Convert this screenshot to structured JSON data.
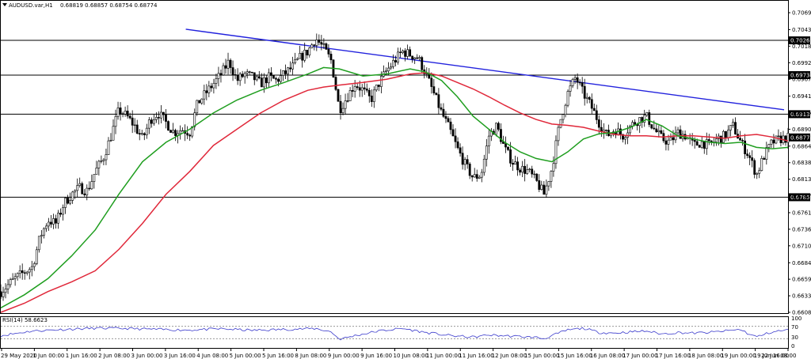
{
  "header": {
    "symbol": "AUDUSD.var,H1",
    "ohlc": "0.68819 0.68857 0.68754 0.68774"
  },
  "rsi_panel": {
    "label": "RSI(14) 58.6623",
    "levels": [
      "100",
      "70",
      "30",
      "0"
    ]
  },
  "chart_data": {
    "type": "candlestick",
    "instrument": "AUDUSD.var",
    "timeframe": "H1",
    "ylim": [
      0.6608,
      0.7072
    ],
    "y_ticks": [
      "0.70695",
      "0.70435",
      "0.70180",
      "0.69925",
      "0.69670",
      "0.69410",
      "0.69155",
      "0.68900",
      "0.68640",
      "0.68385",
      "0.68130",
      "0.67870",
      "0.67615",
      "0.67360",
      "0.67105",
      "0.66844",
      "0.66590",
      "0.66335",
      "0.66080"
    ],
    "x_ticks": [
      "29 May 2020",
      "1 Jun 00:00",
      "1 Jun 16:00",
      "2 Jun 08:00",
      "3 Jun 00:00",
      "3 Jun 16:00",
      "4 Jun 08:00",
      "5 Jun 00:00",
      "5 Jun 16:00",
      "8 Jun 08:00",
      "9 Jun 00:00",
      "9 Jun 16:00",
      "10 Jun 08:00",
      "11 Jun 00:00",
      "11 Jun 16:00",
      "12 Jun 08:00",
      "15 Jun 00:00",
      "15 Jun 16:00",
      "16 Jun 08:00",
      "17 Jun 00:00",
      "17 Jun 16:00",
      "18 Jun 08:00",
      "19 Jun 00:00",
      "19 Jun 16:00",
      "22 Jun 08:00"
    ],
    "horizontal_levels": [
      {
        "value": 0.70269,
        "label": "0.70269"
      },
      {
        "value": 0.69734,
        "label": "0.69734"
      },
      {
        "value": 0.69132,
        "label": "0.69132"
      },
      {
        "value": 0.67853,
        "label": "0.67853"
      }
    ],
    "current_price": {
      "value": 0.68774,
      "label": "0.68774"
    },
    "trendline": {
      "from": [
        0.235,
        0.7044
      ],
      "to": [
        0.995,
        0.692
      ]
    },
    "close_path": [
      [
        0.0,
        0.664
      ],
      [
        0.02,
        0.6662
      ],
      [
        0.04,
        0.6678
      ],
      [
        0.05,
        0.6725
      ],
      [
        0.06,
        0.675
      ],
      [
        0.07,
        0.6745
      ],
      [
        0.08,
        0.6775
      ],
      [
        0.09,
        0.679
      ],
      [
        0.1,
        0.68
      ],
      [
        0.11,
        0.6795
      ],
      [
        0.12,
        0.6825
      ],
      [
        0.13,
        0.6845
      ],
      [
        0.14,
        0.688
      ],
      [
        0.15,
        0.692
      ],
      [
        0.16,
        0.691
      ],
      [
        0.17,
        0.6895
      ],
      [
        0.18,
        0.6875
      ],
      [
        0.19,
        0.6905
      ],
      [
        0.2,
        0.6915
      ],
      [
        0.21,
        0.69
      ],
      [
        0.22,
        0.6885
      ],
      [
        0.23,
        0.689
      ],
      [
        0.24,
        0.6885
      ],
      [
        0.25,
        0.693
      ],
      [
        0.26,
        0.6945
      ],
      [
        0.27,
        0.696
      ],
      [
        0.28,
        0.6975
      ],
      [
        0.29,
        0.6995
      ],
      [
        0.3,
        0.6965
      ],
      [
        0.31,
        0.6975
      ],
      [
        0.32,
        0.697
      ],
      [
        0.33,
        0.696
      ],
      [
        0.34,
        0.697
      ],
      [
        0.35,
        0.6965
      ],
      [
        0.36,
        0.6975
      ],
      [
        0.37,
        0.6985
      ],
      [
        0.38,
        0.7
      ],
      [
        0.39,
        0.701
      ],
      [
        0.4,
        0.703
      ],
      [
        0.41,
        0.7015
      ],
      [
        0.42,
        0.6995
      ],
      [
        0.43,
        0.692
      ],
      [
        0.44,
        0.694
      ],
      [
        0.45,
        0.696
      ],
      [
        0.46,
        0.695
      ],
      [
        0.47,
        0.6935
      ],
      [
        0.48,
        0.696
      ],
      [
        0.49,
        0.698
      ],
      [
        0.5,
        0.6995
      ],
      [
        0.51,
        0.701
      ],
      [
        0.52,
        0.7005
      ],
      [
        0.53,
        0.7
      ],
      [
        0.54,
        0.6975
      ],
      [
        0.55,
        0.6945
      ],
      [
        0.56,
        0.6915
      ],
      [
        0.57,
        0.689
      ],
      [
        0.58,
        0.686
      ],
      [
        0.59,
        0.6835
      ],
      [
        0.6,
        0.6815
      ],
      [
        0.61,
        0.682
      ],
      [
        0.62,
        0.688
      ],
      [
        0.63,
        0.6895
      ],
      [
        0.64,
        0.686
      ],
      [
        0.65,
        0.684
      ],
      [
        0.66,
        0.683
      ],
      [
        0.67,
        0.6825
      ],
      [
        0.68,
        0.681
      ],
      [
        0.69,
        0.679
      ],
      [
        0.7,
        0.683
      ],
      [
        0.71,
        0.69
      ],
      [
        0.72,
        0.6945
      ],
      [
        0.73,
        0.697
      ],
      [
        0.74,
        0.6945
      ],
      [
        0.75,
        0.6925
      ],
      [
        0.76,
        0.69
      ],
      [
        0.77,
        0.688
      ],
      [
        0.78,
        0.689
      ],
      [
        0.79,
        0.688
      ],
      [
        0.8,
        0.6895
      ],
      [
        0.81,
        0.6905
      ],
      [
        0.82,
        0.691
      ],
      [
        0.83,
        0.689
      ],
      [
        0.84,
        0.6875
      ],
      [
        0.85,
        0.687
      ],
      [
        0.86,
        0.6885
      ],
      [
        0.87,
        0.688
      ],
      [
        0.88,
        0.6865
      ],
      [
        0.89,
        0.687
      ],
      [
        0.9,
        0.6865
      ],
      [
        0.91,
        0.6875
      ],
      [
        0.92,
        0.688
      ],
      [
        0.93,
        0.6895
      ],
      [
        0.94,
        0.687
      ],
      [
        0.95,
        0.685
      ],
      [
        0.96,
        0.682
      ],
      [
        0.97,
        0.685
      ],
      [
        0.98,
        0.687
      ],
      [
        0.99,
        0.6875
      ],
      [
        1.0,
        0.6877
      ]
    ],
    "ma_green_path": [
      [
        0.0,
        0.6615
      ],
      [
        0.03,
        0.6635
      ],
      [
        0.06,
        0.666
      ],
      [
        0.09,
        0.6695
      ],
      [
        0.12,
        0.6735
      ],
      [
        0.15,
        0.679
      ],
      [
        0.18,
        0.684
      ],
      [
        0.21,
        0.687
      ],
      [
        0.24,
        0.689
      ],
      [
        0.27,
        0.6915
      ],
      [
        0.3,
        0.6935
      ],
      [
        0.33,
        0.695
      ],
      [
        0.36,
        0.6962
      ],
      [
        0.39,
        0.6975
      ],
      [
        0.41,
        0.6985
      ],
      [
        0.43,
        0.6983
      ],
      [
        0.46,
        0.6972
      ],
      [
        0.49,
        0.6975
      ],
      [
        0.52,
        0.6983
      ],
      [
        0.54,
        0.6978
      ],
      [
        0.56,
        0.6965
      ],
      [
        0.58,
        0.694
      ],
      [
        0.6,
        0.691
      ],
      [
        0.62,
        0.689
      ],
      [
        0.64,
        0.687
      ],
      [
        0.66,
        0.6855
      ],
      [
        0.68,
        0.6845
      ],
      [
        0.7,
        0.684
      ],
      [
        0.72,
        0.6855
      ],
      [
        0.74,
        0.6875
      ],
      [
        0.76,
        0.6883
      ],
      [
        0.78,
        0.6885
      ],
      [
        0.8,
        0.6893
      ],
      [
        0.82,
        0.6905
      ],
      [
        0.84,
        0.6895
      ],
      [
        0.86,
        0.688
      ],
      [
        0.88,
        0.6875
      ],
      [
        0.9,
        0.687
      ],
      [
        0.92,
        0.6868
      ],
      [
        0.94,
        0.687
      ],
      [
        0.96,
        0.6862
      ],
      [
        0.98,
        0.686
      ],
      [
        1.0,
        0.6862
      ]
    ],
    "ma_red_path": [
      [
        0.0,
        0.6608
      ],
      [
        0.03,
        0.6622
      ],
      [
        0.06,
        0.664
      ],
      [
        0.09,
        0.6655
      ],
      [
        0.12,
        0.6672
      ],
      [
        0.15,
        0.6705
      ],
      [
        0.18,
        0.6745
      ],
      [
        0.21,
        0.679
      ],
      [
        0.24,
        0.6825
      ],
      [
        0.27,
        0.6865
      ],
      [
        0.3,
        0.689
      ],
      [
        0.33,
        0.6915
      ],
      [
        0.36,
        0.6935
      ],
      [
        0.39,
        0.695
      ],
      [
        0.41,
        0.6955
      ],
      [
        0.43,
        0.6958
      ],
      [
        0.46,
        0.6962
      ],
      [
        0.49,
        0.6967
      ],
      [
        0.52,
        0.6975
      ],
      [
        0.54,
        0.6977
      ],
      [
        0.56,
        0.6972
      ],
      [
        0.58,
        0.6962
      ],
      [
        0.6,
        0.6952
      ],
      [
        0.62,
        0.694
      ],
      [
        0.64,
        0.6927
      ],
      [
        0.66,
        0.6915
      ],
      [
        0.68,
        0.6905
      ],
      [
        0.7,
        0.6898
      ],
      [
        0.72,
        0.6896
      ],
      [
        0.74,
        0.6893
      ],
      [
        0.76,
        0.6887
      ],
      [
        0.78,
        0.6882
      ],
      [
        0.8,
        0.688
      ],
      [
        0.82,
        0.688
      ],
      [
        0.84,
        0.6878
      ],
      [
        0.86,
        0.688
      ],
      [
        0.88,
        0.688
      ],
      [
        0.9,
        0.6878
      ],
      [
        0.92,
        0.6876
      ],
      [
        0.94,
        0.688
      ],
      [
        0.96,
        0.6882
      ],
      [
        0.98,
        0.6878
      ],
      [
        1.0,
        0.6872
      ]
    ],
    "rsi": {
      "period": 14,
      "value": 58.6623,
      "ylim": [
        0,
        100
      ],
      "levels": [
        70,
        30
      ],
      "path": [
        [
          0.0,
          40
        ],
        [
          0.04,
          55
        ],
        [
          0.08,
          60
        ],
        [
          0.12,
          64
        ],
        [
          0.16,
          63
        ],
        [
          0.2,
          60
        ],
        [
          0.24,
          58
        ],
        [
          0.28,
          62
        ],
        [
          0.32,
          57
        ],
        [
          0.36,
          60
        ],
        [
          0.4,
          63
        ],
        [
          0.42,
          52
        ],
        [
          0.43,
          28
        ],
        [
          0.45,
          40
        ],
        [
          0.48,
          55
        ],
        [
          0.51,
          63
        ],
        [
          0.54,
          50
        ],
        [
          0.57,
          40
        ],
        [
          0.6,
          35
        ],
        [
          0.62,
          42
        ],
        [
          0.65,
          38
        ],
        [
          0.68,
          34
        ],
        [
          0.69,
          30
        ],
        [
          0.7,
          40
        ],
        [
          0.72,
          58
        ],
        [
          0.74,
          64
        ],
        [
          0.76,
          50
        ],
        [
          0.78,
          48
        ],
        [
          0.8,
          52
        ],
        [
          0.82,
          55
        ],
        [
          0.84,
          45
        ],
        [
          0.86,
          50
        ],
        [
          0.88,
          48
        ],
        [
          0.9,
          50
        ],
        [
          0.92,
          55
        ],
        [
          0.94,
          60
        ],
        [
          0.95,
          45
        ],
        [
          0.96,
          36
        ],
        [
          0.98,
          52
        ],
        [
          1.0,
          58.66
        ]
      ]
    },
    "colors": {
      "up_candle": "#000000",
      "down_candle": "#000000",
      "ma_fast": "#1f9e1f",
      "ma_slow": "#e0283a",
      "trendline": "#2222dd",
      "rsi_line": "#3a3acc",
      "levels": "#000000"
    }
  }
}
